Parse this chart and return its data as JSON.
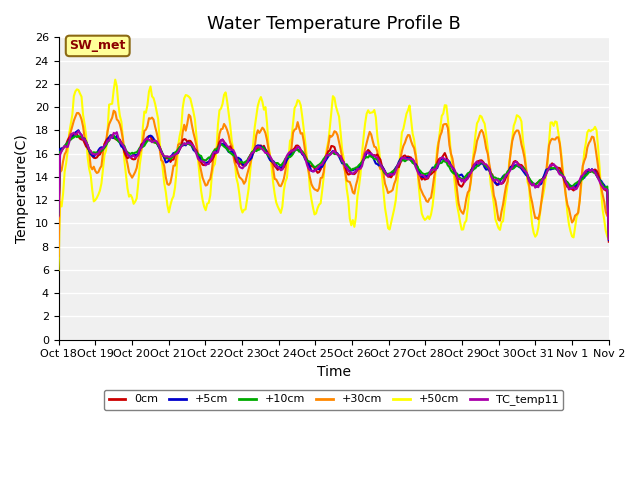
{
  "title": "Water Temperature Profile B",
  "xlabel": "Time",
  "ylabel": "Temperature(C)",
  "ylim": [
    0,
    26
  ],
  "yticks": [
    0,
    2,
    4,
    6,
    8,
    10,
    12,
    14,
    16,
    18,
    20,
    22,
    24,
    26
  ],
  "xtick_labels": [
    "Oct 18",
    "Oct 19",
    "Oct 20",
    "Oct 21",
    "Oct 22",
    "Oct 23",
    "Oct 24",
    "Oct 25",
    "Oct 26",
    "Oct 27",
    "Oct 28",
    "Oct 29",
    "Oct 30",
    "Oct 31",
    "Nov 1",
    "Nov 2"
  ],
  "annotation_text": "SW_met",
  "annotation_color": "#8B0000",
  "annotation_bg": "#FFFF99",
  "series_colors": {
    "0cm": "#CC0000",
    "+5cm": "#0000CC",
    "+10cm": "#00AA00",
    "+30cm": "#FF8800",
    "+50cm": "#FFFF00",
    "TC_temp11": "#AA00AA"
  },
  "series_linewidths": {
    "0cm": 1.5,
    "+5cm": 1.5,
    "+10cm": 1.5,
    "+30cm": 1.5,
    "+50cm": 1.5,
    "TC_temp11": 1.5
  },
  "plot_bg": "#F0F0F0",
  "grid_color": "#FFFFFF",
  "title_fontsize": 13,
  "axis_fontsize": 10,
  "tick_fontsize": 8
}
